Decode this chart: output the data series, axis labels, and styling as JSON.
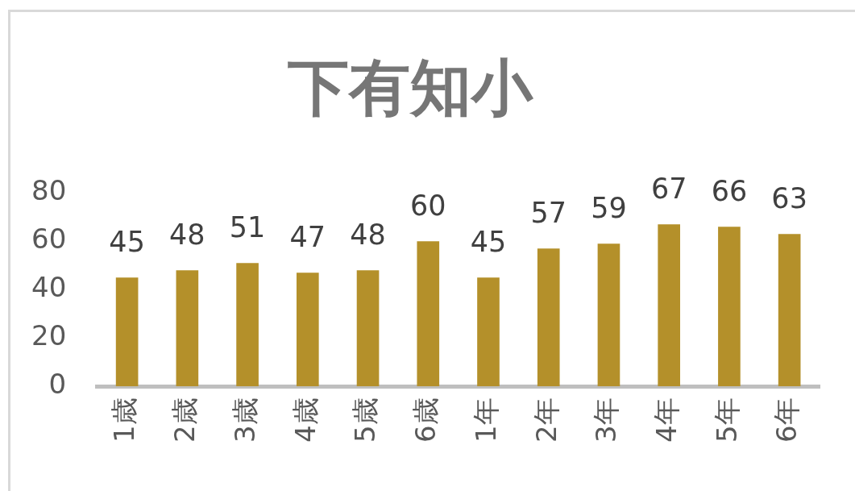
{
  "chart_data": {
    "type": "bar",
    "title": "下有知小",
    "categories": [
      "1歳",
      "2歳",
      "3歳",
      "4歳",
      "5歳",
      "6歳",
      "1年",
      "2年",
      "3年",
      "4年",
      "5年",
      "6年"
    ],
    "values": [
      45,
      48,
      51,
      47,
      48,
      60,
      45,
      57,
      59,
      67,
      66,
      63
    ],
    "color": "#b4902a",
    "ylim": [
      0,
      80
    ],
    "yticks": [
      0,
      20,
      40,
      60,
      80
    ],
    "data_labels": true
  }
}
